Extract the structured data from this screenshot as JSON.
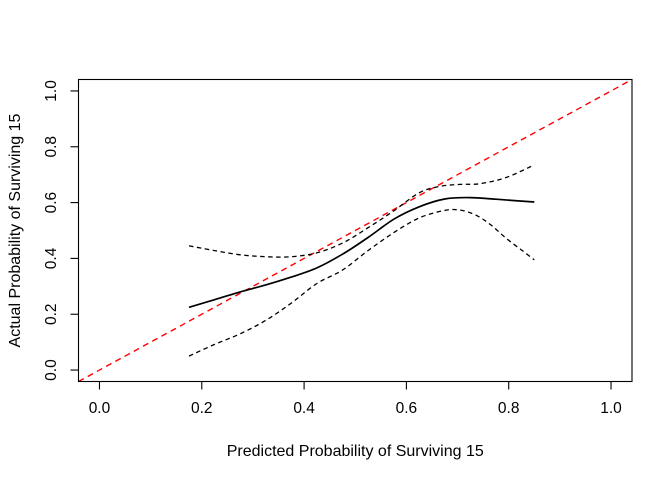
{
  "figure": {
    "background": "#ffffff",
    "text_color": "#000000",
    "frame_color": "#000000"
  },
  "chart_data": {
    "type": "line",
    "title": "",
    "xlabel": "Predicted Probability of Surviving 15",
    "ylabel": "Actual Probability of Surviving 15",
    "xlim": [
      -0.041,
      1.041
    ],
    "ylim": [
      -0.041,
      1.041
    ],
    "grid": false,
    "legend_position": "none",
    "x_ticks": {
      "values": [
        0.0,
        0.2,
        0.4,
        0.6,
        0.8,
        1.0
      ],
      "labels": [
        "0.0",
        "0.2",
        "0.4",
        "0.6",
        "0.8",
        "1.0"
      ]
    },
    "y_ticks": {
      "values": [
        0.0,
        0.2,
        0.4,
        0.6,
        0.8,
        1.0
      ],
      "labels": [
        "0.0",
        "0.2",
        "0.4",
        "0.6",
        "0.8",
        "1.0"
      ]
    },
    "series": [
      {
        "name": "ideal-line",
        "style": "dashed",
        "color": "#ff0000",
        "width": 1.4,
        "dash": "6,4.5",
        "smooth": false,
        "x": [
          -0.041,
          1.041
        ],
        "y": [
          -0.041,
          1.041
        ]
      },
      {
        "name": "calibration-curve",
        "style": "solid",
        "color": "#000000",
        "width": 1.7,
        "dash": "",
        "smooth": true,
        "x": [
          0.175,
          0.225,
          0.275,
          0.325,
          0.375,
          0.425,
          0.475,
          0.525,
          0.575,
          0.625,
          0.675,
          0.725,
          0.775,
          0.85
        ],
        "y": [
          0.225,
          0.252,
          0.28,
          0.305,
          0.333,
          0.366,
          0.415,
          0.475,
          0.54,
          0.585,
          0.613,
          0.618,
          0.612,
          0.602
        ]
      },
      {
        "name": "upper-confidence-band",
        "style": "dashed",
        "color": "#000000",
        "width": 1.3,
        "dash": "4.5,3.5",
        "smooth": true,
        "x": [
          0.175,
          0.225,
          0.275,
          0.325,
          0.375,
          0.425,
          0.475,
          0.525,
          0.575,
          0.625,
          0.665,
          0.705,
          0.745,
          0.795,
          0.85
        ],
        "y": [
          0.445,
          0.428,
          0.413,
          0.406,
          0.406,
          0.42,
          0.455,
          0.51,
          0.57,
          0.635,
          0.658,
          0.665,
          0.668,
          0.69,
          0.735
        ]
      },
      {
        "name": "lower-confidence-band",
        "style": "dashed",
        "color": "#000000",
        "width": 1.3,
        "dash": "4.5,3.5",
        "smooth": true,
        "x": [
          0.175,
          0.225,
          0.275,
          0.325,
          0.375,
          0.425,
          0.475,
          0.525,
          0.575,
          0.625,
          0.675,
          0.705,
          0.735,
          0.765,
          0.795,
          0.825,
          0.85
        ],
        "y": [
          0.05,
          0.092,
          0.13,
          0.178,
          0.24,
          0.31,
          0.358,
          0.428,
          0.492,
          0.545,
          0.572,
          0.573,
          0.556,
          0.52,
          0.472,
          0.43,
          0.395
        ]
      }
    ]
  }
}
